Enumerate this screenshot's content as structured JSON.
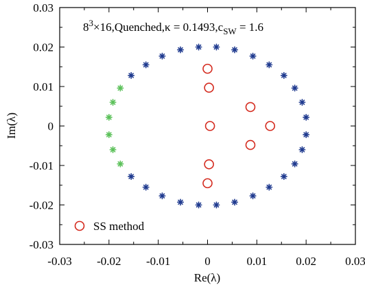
{
  "chart_data": {
    "type": "scatter",
    "title": "",
    "xlabel": "Re(λ)",
    "ylabel": "Im(λ)",
    "xlim": [
      -0.03,
      0.03
    ],
    "ylim": [
      -0.03,
      0.03
    ],
    "grid": false,
    "xticks": [
      -0.03,
      -0.02,
      -0.01,
      0,
      0.01,
      0.02,
      0.03
    ],
    "xtick_labels": [
      "-0.03",
      "-0.02",
      "-0.01",
      "0",
      "0.01",
      "0.02",
      "0.03"
    ],
    "yticks": [
      -0.03,
      -0.02,
      -0.01,
      0,
      0.01,
      0.02,
      0.03
    ],
    "ytick_labels": [
      "-0.03",
      "-0.02",
      "-0.01",
      "0",
      "0.01",
      "0.02",
      "0.03"
    ],
    "annotation": {
      "pre": "8",
      "sup": "3",
      "mid": "×16,Quenched,κ = 0.1493,c",
      "sub": "SW",
      "post": " = 1.6"
    },
    "legend": {
      "position": "bottom-left",
      "label": "SS method",
      "marker": "open-circle",
      "color": "#d42a1e"
    },
    "series": [
      {
        "marker": "star",
        "color": "#1f3a8f",
        "points": [
          [
            -0.0018,
            0.02
          ],
          [
            0.0018,
            0.02
          ],
          [
            -0.0055,
            0.0193
          ],
          [
            0.0055,
            0.0193
          ],
          [
            -0.0092,
            0.0177
          ],
          [
            0.0092,
            0.0177
          ],
          [
            -0.0125,
            0.0155
          ],
          [
            0.0125,
            0.0155
          ],
          [
            -0.0155,
            0.0128
          ],
          [
            0.0155,
            0.0128
          ],
          [
            0.0177,
            0.0096
          ],
          [
            0.0192,
            0.006
          ],
          [
            0.02,
            0.0022
          ],
          [
            0.02,
            -0.0022
          ],
          [
            0.0192,
            -0.006
          ],
          [
            0.0177,
            -0.0096
          ],
          [
            -0.0155,
            -0.0128
          ],
          [
            0.0155,
            -0.0128
          ],
          [
            -0.0125,
            -0.0155
          ],
          [
            0.0125,
            -0.0155
          ],
          [
            -0.0092,
            -0.0177
          ],
          [
            0.0092,
            -0.0177
          ],
          [
            -0.0055,
            -0.0193
          ],
          [
            0.0055,
            -0.0193
          ],
          [
            -0.0018,
            -0.02
          ],
          [
            0.0018,
            -0.02
          ]
        ]
      },
      {
        "marker": "star",
        "color": "#5cc15a",
        "points": [
          [
            -0.0177,
            0.0096
          ],
          [
            -0.0192,
            0.006
          ],
          [
            -0.02,
            0.0022
          ],
          [
            -0.02,
            -0.0022
          ],
          [
            -0.0192,
            -0.006
          ],
          [
            -0.0177,
            -0.0096
          ]
        ]
      },
      {
        "name": "SS method",
        "marker": "open-circle",
        "color": "#d42a1e",
        "points": [
          [
            0.0,
            0.0145
          ],
          [
            0.0003,
            0.0097
          ],
          [
            0.0087,
            0.0048
          ],
          [
            0.0005,
            0.0
          ],
          [
            0.0127,
            0.0
          ],
          [
            0.0087,
            -0.0048
          ],
          [
            0.0003,
            -0.0097
          ],
          [
            0.0,
            -0.0145
          ]
        ]
      }
    ]
  }
}
